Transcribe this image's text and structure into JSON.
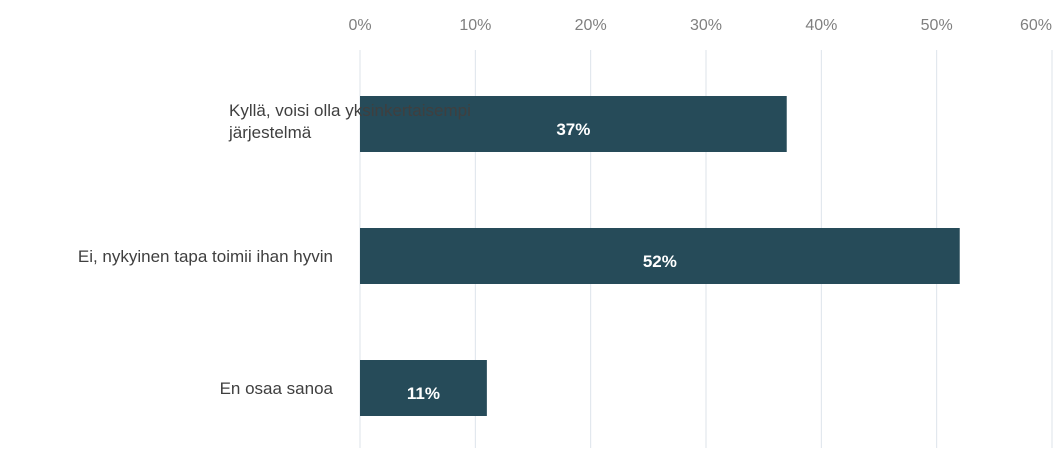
{
  "chart_data": {
    "type": "bar",
    "orientation": "horizontal",
    "categories": [
      [
        "Kyllä, voisi olla yksinkertaisempi",
        "järjestelmä"
      ],
      [
        "Ei, nykyinen tapa toimii ihan hyvin"
      ],
      [
        "En osaa sanoa"
      ]
    ],
    "values": [
      37,
      52,
      11
    ],
    "data_labels": [
      "37%",
      "52%",
      "11%"
    ],
    "xlim": [
      0,
      60
    ],
    "x_ticks": [
      "0%",
      "10%",
      "20%",
      "30%",
      "40%",
      "50%",
      "60%"
    ],
    "x_axis_position": "top",
    "grid": true,
    "legend": "none",
    "title": "",
    "xlabel": "",
    "ylabel": ""
  },
  "colors": {
    "bar": "#264b59",
    "grid": "#dde3ea",
    "tick_text": "#7f7f7f",
    "category_text": "#3f3f3f",
    "data_label_text": "#ffffff"
  }
}
